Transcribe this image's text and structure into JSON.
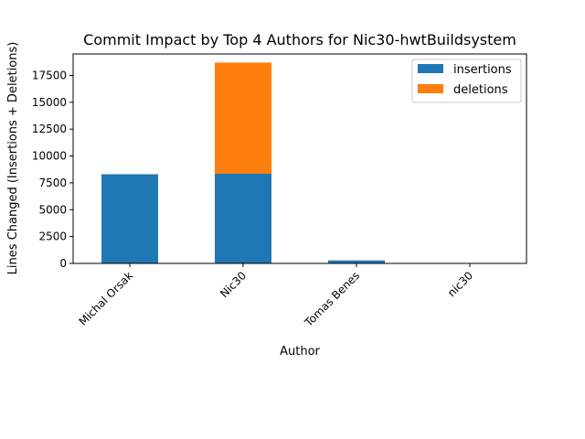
{
  "chart_data": {
    "type": "bar",
    "stacked": true,
    "title": "Commit Impact by Top 4 Authors for Nic30-hwtBuildsystem",
    "xlabel": "Author",
    "ylabel": "Lines Changed (Insertions + Deletions)",
    "categories": [
      "Michal Orsak",
      "Nic30",
      "Tomas Benes",
      "nic30"
    ],
    "series": [
      {
        "name": "insertions",
        "color": "#1f77b4",
        "values": [
          8300,
          8350,
          280,
          20
        ]
      },
      {
        "name": "deletions",
        "color": "#ff7f0e",
        "values": [
          0,
          10350,
          0,
          0
        ]
      }
    ],
    "ylim": [
      0,
      19500
    ],
    "yticks": [
      0,
      2500,
      5000,
      7500,
      10000,
      12500,
      15000,
      17500
    ],
    "legend_position": "top-right",
    "grid": false
  }
}
